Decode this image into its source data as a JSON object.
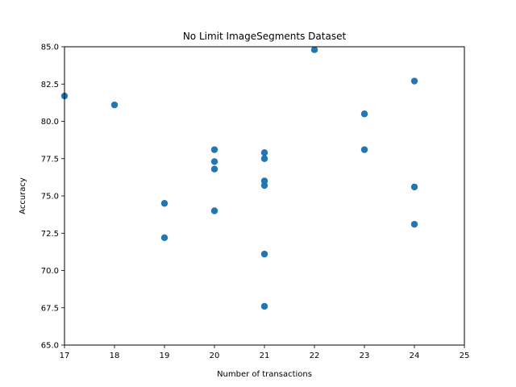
{
  "chart_data": {
    "type": "scatter",
    "title": "No Limit ImageSegments Dataset",
    "xlabel": "Number of transactions",
    "ylabel": "Accuracy",
    "xlim": [
      17,
      25
    ],
    "ylim": [
      65.0,
      85.0
    ],
    "xticks": [
      "17",
      "18",
      "19",
      "20",
      "21",
      "22",
      "23",
      "24",
      "25"
    ],
    "yticks": [
      "65.0",
      "67.5",
      "70.0",
      "72.5",
      "75.0",
      "77.5",
      "80.0",
      "82.5",
      "85.0"
    ],
    "grid": false,
    "marker_color": "#1f77b4",
    "points": [
      {
        "x": 17,
        "y": 81.7
      },
      {
        "x": 18,
        "y": 81.1
      },
      {
        "x": 19,
        "y": 74.5
      },
      {
        "x": 19,
        "y": 72.2
      },
      {
        "x": 20,
        "y": 78.1
      },
      {
        "x": 20,
        "y": 77.3
      },
      {
        "x": 20,
        "y": 76.8
      },
      {
        "x": 20,
        "y": 74.0
      },
      {
        "x": 21,
        "y": 77.9
      },
      {
        "x": 21,
        "y": 77.5
      },
      {
        "x": 21,
        "y": 76.0
      },
      {
        "x": 21,
        "y": 75.7
      },
      {
        "x": 21,
        "y": 71.1
      },
      {
        "x": 21,
        "y": 67.6
      },
      {
        "x": 22,
        "y": 84.8
      },
      {
        "x": 23,
        "y": 80.5
      },
      {
        "x": 23,
        "y": 78.1
      },
      {
        "x": 24,
        "y": 82.7
      },
      {
        "x": 24,
        "y": 75.6
      },
      {
        "x": 24,
        "y": 73.1
      }
    ]
  }
}
